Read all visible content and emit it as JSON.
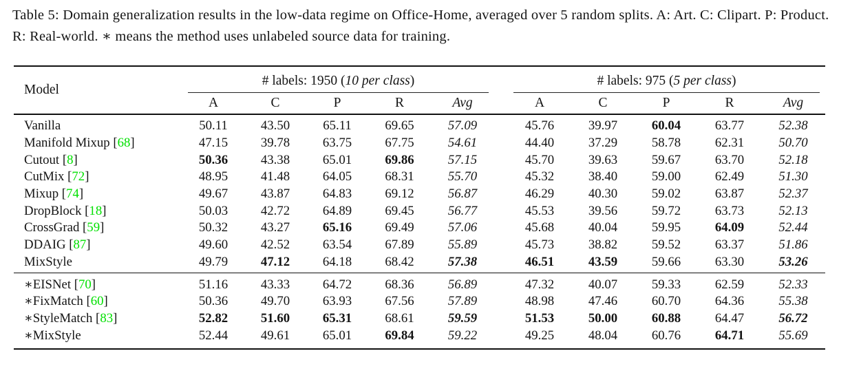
{
  "caption": {
    "text": "Table 5: Domain generalization results in the low-data regime on Office-Home, averaged over 5 random splits. A: Art. C: Clipart. P: Product. R: Real-world. ∗ means the method uses unlabeled source data for training."
  },
  "table": {
    "model_header": "Model",
    "star_symbol": "∗",
    "groups": [
      {
        "pre": "# labels: 1950 (",
        "em": "10 per class",
        "post": ")",
        "cols": [
          "A",
          "C",
          "P",
          "R",
          "Avg"
        ]
      },
      {
        "pre": "# labels: 975 (",
        "em": "5 per class",
        "post": ")",
        "cols": [
          "A",
          "C",
          "P",
          "R",
          "Avg"
        ]
      }
    ],
    "sections": [
      {
        "rows": [
          {
            "label": "Vanilla",
            "star": false,
            "cite": null,
            "values": [
              "50.11",
              "43.50",
              "65.11",
              "69.65",
              "57.09",
              "45.76",
              "39.97",
              "60.04",
              "63.77",
              "52.38"
            ],
            "bold": [
              7
            ]
          },
          {
            "label": "Manifold Mixup",
            "star": false,
            "cite": "68",
            "values": [
              "47.15",
              "39.78",
              "63.75",
              "67.75",
              "54.61",
              "44.40",
              "37.29",
              "58.78",
              "62.31",
              "50.70"
            ],
            "bold": []
          },
          {
            "label": "Cutout",
            "star": false,
            "cite": "8",
            "values": [
              "50.36",
              "43.38",
              "65.01",
              "69.86",
              "57.15",
              "45.70",
              "39.63",
              "59.67",
              "63.70",
              "52.18"
            ],
            "bold": [
              0,
              3
            ]
          },
          {
            "label": "CutMix",
            "star": false,
            "cite": "72",
            "values": [
              "48.95",
              "41.48",
              "64.05",
              "68.31",
              "55.70",
              "45.32",
              "38.40",
              "59.00",
              "62.49",
              "51.30"
            ],
            "bold": []
          },
          {
            "label": "Mixup",
            "star": false,
            "cite": "74",
            "values": [
              "49.67",
              "43.87",
              "64.83",
              "69.12",
              "56.87",
              "46.29",
              "40.30",
              "59.02",
              "63.87",
              "52.37"
            ],
            "bold": []
          },
          {
            "label": "DropBlock",
            "star": false,
            "cite": "18",
            "values": [
              "50.03",
              "42.72",
              "64.89",
              "69.45",
              "56.77",
              "45.53",
              "39.56",
              "59.72",
              "63.73",
              "52.13"
            ],
            "bold": []
          },
          {
            "label": "CrossGrad",
            "star": false,
            "cite": "59",
            "values": [
              "50.32",
              "43.27",
              "65.16",
              "69.49",
              "57.06",
              "45.68",
              "40.04",
              "59.95",
              "64.09",
              "52.44"
            ],
            "bold": [
              2,
              8
            ]
          },
          {
            "label": "DDAIG",
            "star": false,
            "cite": "87",
            "values": [
              "49.60",
              "42.52",
              "63.54",
              "67.89",
              "55.89",
              "45.73",
              "38.82",
              "59.52",
              "63.37",
              "51.86"
            ],
            "bold": []
          },
          {
            "label": "MixStyle",
            "star": false,
            "cite": null,
            "values": [
              "49.79",
              "47.12",
              "64.18",
              "68.42",
              "57.38",
              "46.51",
              "43.59",
              "59.66",
              "63.30",
              "53.26"
            ],
            "bold": [
              1,
              4,
              5,
              6,
              9
            ]
          }
        ]
      },
      {
        "rows": [
          {
            "label": "EISNet",
            "star": true,
            "cite": "70",
            "values": [
              "51.16",
              "43.33",
              "64.72",
              "68.36",
              "56.89",
              "47.32",
              "40.07",
              "59.33",
              "62.59",
              "52.33"
            ],
            "bold": []
          },
          {
            "label": "FixMatch",
            "star": true,
            "cite": "60",
            "values": [
              "50.36",
              "49.70",
              "63.93",
              "67.56",
              "57.89",
              "48.98",
              "47.46",
              "60.70",
              "64.36",
              "55.38"
            ],
            "bold": []
          },
          {
            "label": "StyleMatch",
            "star": true,
            "cite": "83",
            "values": [
              "52.82",
              "51.60",
              "65.31",
              "68.61",
              "59.59",
              "51.53",
              "50.00",
              "60.88",
              "64.47",
              "56.72"
            ],
            "bold": [
              0,
              1,
              2,
              4,
              5,
              6,
              7,
              9
            ]
          },
          {
            "label": "MixStyle",
            "star": true,
            "cite": null,
            "values": [
              "52.44",
              "49.61",
              "65.01",
              "69.84",
              "59.22",
              "49.25",
              "48.04",
              "60.76",
              "64.71",
              "55.69"
            ],
            "bold": [
              3,
              8
            ]
          }
        ]
      }
    ]
  }
}
